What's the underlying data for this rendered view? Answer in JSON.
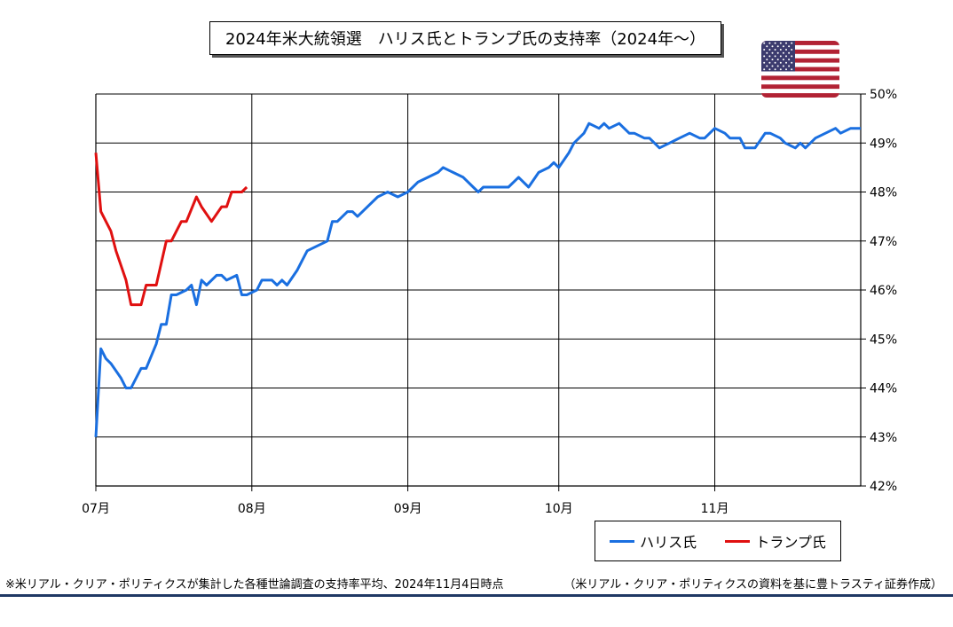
{
  "title": "2024年米大統領選　ハリス氏とトランプ氏の支持率（2024年～）",
  "footnote_left": "※米リアル・クリア・ポリティクスが集計した各種世論調査の支持率平均、2024年11月4日時点",
  "footnote_right": "（米リアル・クリア・ポリティクスの資料を基に豊トラスティ証券作成）",
  "colors": {
    "harris": "#1a6fe0",
    "trump": "#e01010",
    "bottom_rule": "#1f3864"
  },
  "icons": {
    "flag": "us-flag-icon"
  },
  "chart_data": {
    "type": "line",
    "x_tick_labels": [
      "07月",
      "08月",
      "09月",
      "10月",
      "11月"
    ],
    "x_tick_dates": [
      "2024-07-01",
      "2024-08-01",
      "2024-09-01",
      "2024-10-01",
      "2024-11-01"
    ],
    "x_range": [
      "2024-07-01",
      "2024-11-30"
    ],
    "y_range": [
      42,
      50
    ],
    "y_tick_labels": [
      "42%",
      "43%",
      "44%",
      "45%",
      "46%",
      "47%",
      "48%",
      "49%",
      "50%"
    ],
    "y_axis_side": "right",
    "grid": true,
    "legend_position": "bottom-right",
    "series": [
      {
        "name": "ハリス氏",
        "color": "#1a6fe0",
        "points": [
          [
            "2024-07-01",
            43.0
          ],
          [
            "2024-07-02",
            44.8
          ],
          [
            "2024-07-03",
            44.6
          ],
          [
            "2024-07-04",
            44.5
          ],
          [
            "2024-07-06",
            44.2
          ],
          [
            "2024-07-07",
            44.0
          ],
          [
            "2024-07-08",
            44.0
          ],
          [
            "2024-07-10",
            44.4
          ],
          [
            "2024-07-11",
            44.4
          ],
          [
            "2024-07-13",
            44.9
          ],
          [
            "2024-07-14",
            45.3
          ],
          [
            "2024-07-15",
            45.3
          ],
          [
            "2024-07-16",
            45.9
          ],
          [
            "2024-07-17",
            45.9
          ],
          [
            "2024-07-19",
            46.0
          ],
          [
            "2024-07-20",
            46.1
          ],
          [
            "2024-07-21",
            45.7
          ],
          [
            "2024-07-22",
            46.2
          ],
          [
            "2024-07-23",
            46.1
          ],
          [
            "2024-07-25",
            46.3
          ],
          [
            "2024-07-26",
            46.3
          ],
          [
            "2024-07-27",
            46.2
          ],
          [
            "2024-07-29",
            46.3
          ],
          [
            "2024-07-30",
            45.9
          ],
          [
            "2024-07-31",
            45.9
          ],
          [
            "2024-08-02",
            46.0
          ],
          [
            "2024-08-03",
            46.2
          ],
          [
            "2024-08-05",
            46.2
          ],
          [
            "2024-08-06",
            46.1
          ],
          [
            "2024-08-07",
            46.2
          ],
          [
            "2024-08-08",
            46.1
          ],
          [
            "2024-08-10",
            46.4
          ],
          [
            "2024-08-11",
            46.6
          ],
          [
            "2024-08-12",
            46.8
          ],
          [
            "2024-08-14",
            46.9
          ],
          [
            "2024-08-16",
            47.0
          ],
          [
            "2024-08-17",
            47.4
          ],
          [
            "2024-08-18",
            47.4
          ],
          [
            "2024-08-20",
            47.6
          ],
          [
            "2024-08-21",
            47.6
          ],
          [
            "2024-08-22",
            47.5
          ],
          [
            "2024-08-24",
            47.7
          ],
          [
            "2024-08-26",
            47.9
          ],
          [
            "2024-08-28",
            48.0
          ],
          [
            "2024-08-30",
            47.9
          ],
          [
            "2024-09-01",
            48.0
          ],
          [
            "2024-09-03",
            48.2
          ],
          [
            "2024-09-05",
            48.3
          ],
          [
            "2024-09-07",
            48.4
          ],
          [
            "2024-09-08",
            48.5
          ],
          [
            "2024-09-10",
            48.4
          ],
          [
            "2024-09-12",
            48.3
          ],
          [
            "2024-09-14",
            48.1
          ],
          [
            "2024-09-15",
            48.0
          ],
          [
            "2024-09-16",
            48.1
          ],
          [
            "2024-09-19",
            48.1
          ],
          [
            "2024-09-21",
            48.1
          ],
          [
            "2024-09-23",
            48.3
          ],
          [
            "2024-09-25",
            48.1
          ],
          [
            "2024-09-27",
            48.4
          ],
          [
            "2024-09-29",
            48.5
          ],
          [
            "2024-09-30",
            48.6
          ],
          [
            "2024-10-01",
            48.5
          ],
          [
            "2024-10-03",
            48.8
          ],
          [
            "2024-10-04",
            49.0
          ],
          [
            "2024-10-06",
            49.2
          ],
          [
            "2024-10-07",
            49.4
          ],
          [
            "2024-10-09",
            49.3
          ],
          [
            "2024-10-10",
            49.4
          ],
          [
            "2024-10-11",
            49.3
          ],
          [
            "2024-10-13",
            49.4
          ],
          [
            "2024-10-15",
            49.2
          ],
          [
            "2024-10-16",
            49.2
          ],
          [
            "2024-10-18",
            49.1
          ],
          [
            "2024-10-19",
            49.1
          ],
          [
            "2024-10-21",
            48.9
          ],
          [
            "2024-10-23",
            49.0
          ],
          [
            "2024-10-25",
            49.1
          ],
          [
            "2024-10-27",
            49.2
          ],
          [
            "2024-10-29",
            49.1
          ],
          [
            "2024-10-30",
            49.1
          ],
          [
            "2024-11-01",
            49.3
          ],
          [
            "2024-11-03",
            49.2
          ],
          [
            "2024-11-04",
            49.1
          ],
          [
            "2024-11-06",
            49.1
          ],
          [
            "2024-11-07",
            48.9
          ],
          [
            "2024-11-09",
            48.9
          ],
          [
            "2024-11-11",
            49.2
          ],
          [
            "2024-11-12",
            49.2
          ],
          [
            "2024-11-14",
            49.1
          ],
          [
            "2024-11-15",
            49.0
          ],
          [
            "2024-11-17",
            48.9
          ],
          [
            "2024-11-18",
            49.0
          ],
          [
            "2024-11-19",
            48.9
          ],
          [
            "2024-11-21",
            49.1
          ],
          [
            "2024-11-23",
            49.2
          ],
          [
            "2024-11-25",
            49.3
          ],
          [
            "2024-11-26",
            49.2
          ],
          [
            "2024-11-28",
            49.3
          ],
          [
            "2024-11-30",
            49.3
          ]
        ]
      },
      {
        "name": "トランプ氏",
        "color": "#e01010",
        "points": [
          [
            "2024-07-01",
            48.8
          ],
          [
            "2024-07-02",
            47.6
          ],
          [
            "2024-07-04",
            47.2
          ],
          [
            "2024-07-05",
            46.8
          ],
          [
            "2024-07-07",
            46.2
          ],
          [
            "2024-07-08",
            45.7
          ],
          [
            "2024-07-10",
            45.7
          ],
          [
            "2024-07-11",
            46.1
          ],
          [
            "2024-07-13",
            46.1
          ],
          [
            "2024-07-15",
            47.0
          ],
          [
            "2024-07-16",
            47.0
          ],
          [
            "2024-07-18",
            47.4
          ],
          [
            "2024-07-19",
            47.4
          ],
          [
            "2024-07-21",
            47.9
          ],
          [
            "2024-07-22",
            47.7
          ],
          [
            "2024-07-24",
            47.4
          ],
          [
            "2024-07-26",
            47.7
          ],
          [
            "2024-07-27",
            47.7
          ],
          [
            "2024-07-28",
            48.0
          ],
          [
            "2024-07-30",
            48.0
          ],
          [
            "2024-07-31",
            48.1
          ]
        ]
      }
    ]
  }
}
